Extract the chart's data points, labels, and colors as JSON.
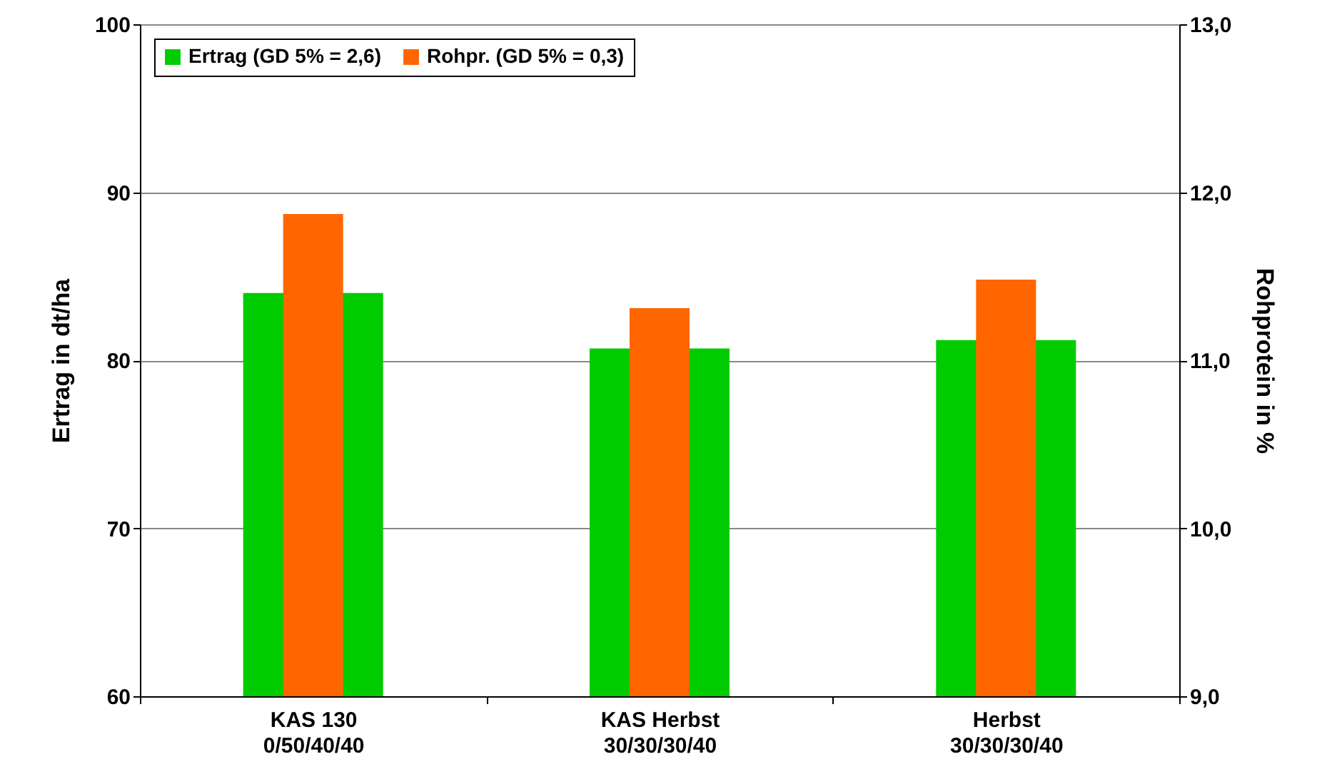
{
  "chart_data": {
    "type": "bar",
    "categories": [
      "KAS 130\n0/50/40/40",
      "KAS Herbst\n30/30/30/40",
      "Herbst\n30/30/30/40"
    ],
    "series": [
      {
        "name": "Ertrag (GD 5% = 2,6)",
        "color": "#00cc00",
        "values": [
          84.0,
          80.7,
          81.2
        ]
      },
      {
        "name": "Rohpr. (GD 5% = 0,3)",
        "color": "#ff6600",
        "values": [
          11.87,
          11.31,
          11.48
        ],
        "axis": "y2"
      }
    ],
    "ylabel": "Ertrag in dt/ha",
    "y2label": "Rohprotein in %",
    "ylim": [
      60,
      100
    ],
    "yticks": [
      60,
      70,
      80,
      90,
      100
    ],
    "y2lim": [
      9,
      13
    ],
    "y2ticks": [
      {
        "value": 9,
        "label": "9,0"
      },
      {
        "value": 10,
        "label": "10,0"
      },
      {
        "value": 11,
        "label": "11,0"
      },
      {
        "value": 12,
        "label": "12,0"
      },
      {
        "value": 13,
        "label": "13,0"
      }
    ],
    "grid": "y",
    "legend": "top left"
  }
}
